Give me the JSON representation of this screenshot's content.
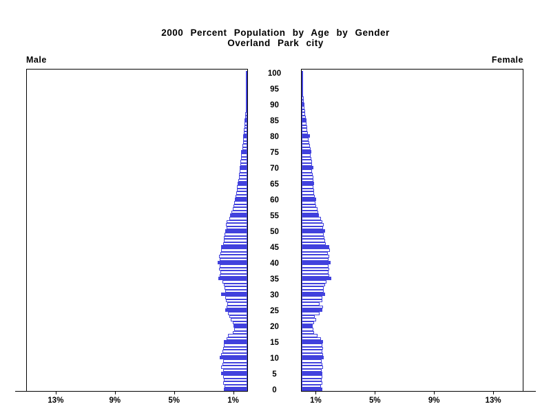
{
  "title": {
    "line1": "2000 Percent Population by Age by Gender",
    "line2": "Overland Park city"
  },
  "panels": {
    "male_label": "Male",
    "female_label": "Female"
  },
  "axis": {
    "age_tick_step": 5,
    "age_ticks": [
      0,
      5,
      10,
      15,
      20,
      25,
      30,
      35,
      40,
      45,
      50,
      55,
      60,
      65,
      70,
      75,
      80,
      85,
      90,
      95,
      100
    ],
    "pct_ticks": [
      1,
      5,
      9,
      13
    ],
    "pct_tick_labels": [
      "1%",
      "5%",
      "9%",
      "13%"
    ],
    "pct_axis_max": 15
  },
  "colors": {
    "bar_outline": "#4141DD",
    "bar_solid_fill": "#4141DD",
    "bar_open_fill": "#FFFFFF",
    "axis_line": "#000000",
    "text": "#000000",
    "background": "#FFFFFF"
  },
  "legend_note": "solid blue bars mark ages that are multiples of 5; other single-year bars are white with blue outline",
  "chart_data": {
    "type": "bar",
    "subtype": "population-pyramid",
    "title": "2000 Percent Population by Age by Gender",
    "subtitle": "Overland Park city",
    "xlabel": "Percent of population",
    "ylabel": "Age (single years, 0-100)",
    "xlim_each_side": [
      0,
      15
    ],
    "grid": false,
    "legend_position": "panel-corner-labels",
    "ages": [
      0,
      1,
      2,
      3,
      4,
      5,
      6,
      7,
      8,
      9,
      10,
      11,
      12,
      13,
      14,
      15,
      16,
      17,
      18,
      19,
      20,
      21,
      22,
      23,
      24,
      25,
      26,
      27,
      28,
      29,
      30,
      31,
      32,
      33,
      34,
      35,
      36,
      37,
      38,
      39,
      40,
      41,
      42,
      43,
      44,
      45,
      46,
      47,
      48,
      49,
      50,
      51,
      52,
      53,
      54,
      55,
      56,
      57,
      58,
      59,
      60,
      61,
      62,
      63,
      64,
      65,
      66,
      67,
      68,
      69,
      70,
      71,
      72,
      73,
      74,
      75,
      76,
      77,
      78,
      79,
      80,
      81,
      82,
      83,
      84,
      85,
      86,
      87,
      88,
      89,
      90,
      91,
      92,
      93,
      94,
      95,
      96,
      97,
      98,
      99,
      100
    ],
    "series": [
      {
        "name": "Male",
        "direction": "left",
        "values": [
          1.6,
          1.55,
          1.65,
          1.6,
          1.63,
          1.75,
          1.65,
          1.75,
          1.7,
          1.65,
          1.85,
          1.75,
          1.7,
          1.65,
          1.6,
          1.6,
          1.4,
          1.3,
          1.0,
          0.9,
          0.95,
          1.0,
          1.1,
          1.2,
          1.3,
          1.5,
          1.4,
          1.35,
          1.45,
          1.5,
          1.75,
          1.5,
          1.55,
          1.6,
          1.7,
          1.95,
          1.85,
          1.8,
          1.9,
          1.85,
          2.0,
          1.85,
          1.9,
          1.8,
          1.75,
          1.75,
          1.65,
          1.6,
          1.6,
          1.55,
          1.5,
          1.4,
          1.45,
          1.4,
          1.2,
          1.15,
          1.05,
          1.0,
          0.95,
          0.9,
          0.85,
          0.8,
          0.75,
          0.7,
          0.7,
          0.65,
          0.6,
          0.55,
          0.55,
          0.5,
          0.5,
          0.45,
          0.45,
          0.4,
          0.4,
          0.4,
          0.35,
          0.33,
          0.3,
          0.28,
          0.28,
          0.25,
          0.22,
          0.2,
          0.18,
          0.17,
          0.15,
          0.13,
          0.11,
          0.1,
          0.09,
          0.07,
          0.06,
          0.05,
          0.04,
          0.035,
          0.03,
          0.02,
          0.02,
          0.01,
          0.01
        ]
      },
      {
        "name": "Female",
        "direction": "right",
        "values": [
          1.4,
          1.3,
          1.4,
          1.35,
          1.4,
          1.4,
          1.35,
          1.45,
          1.4,
          1.35,
          1.5,
          1.45,
          1.4,
          1.45,
          1.4,
          1.45,
          1.3,
          1.05,
          0.85,
          0.8,
          0.75,
          0.85,
          1.0,
          0.9,
          1.2,
          1.4,
          1.45,
          1.2,
          1.4,
          1.4,
          1.6,
          1.5,
          1.5,
          1.6,
          1.7,
          2.0,
          1.85,
          1.8,
          1.85,
          1.8,
          1.95,
          1.8,
          1.85,
          1.75,
          1.9,
          1.85,
          1.65,
          1.6,
          1.55,
          1.5,
          1.6,
          1.45,
          1.5,
          1.4,
          1.3,
          1.15,
          1.1,
          1.05,
          1.0,
          0.95,
          1.0,
          0.9,
          0.85,
          0.85,
          0.8,
          0.85,
          0.8,
          0.8,
          0.75,
          0.7,
          0.8,
          0.7,
          0.7,
          0.65,
          0.6,
          0.65,
          0.6,
          0.55,
          0.5,
          0.45,
          0.55,
          0.4,
          0.38,
          0.35,
          0.32,
          0.33,
          0.28,
          0.25,
          0.22,
          0.18,
          0.18,
          0.15,
          0.12,
          0.1,
          0.09,
          0.08,
          0.06,
          0.05,
          0.04,
          0.03,
          0.03
        ]
      }
    ]
  }
}
